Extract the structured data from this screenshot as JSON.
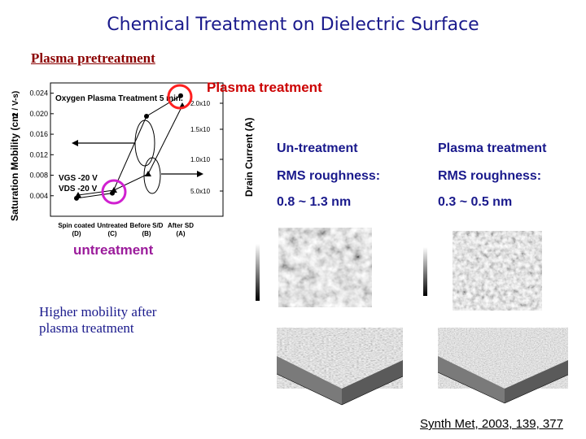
{
  "slide": {
    "title": "Chemical Treatment on Dielectric Surface",
    "subtitle": "Plasma pretreatment",
    "plasma_label": "Plasma treatment",
    "untreatment_label": "untreatment",
    "table": {
      "col1_header": "Un-treatment",
      "col2_header": "Plasma treatment",
      "rms_label_1": "RMS roughness:",
      "rms_label_2": "RMS roughness:",
      "col1_value": "0.8 ~ 1.3 nm",
      "col2_value": "0.3 ~ 0.5 nm"
    },
    "conclusion_line1": "Higher mobility after",
    "conclusion_line2": "plasma treatment",
    "citation": "Synth Met, 2003, 139, 377"
  },
  "chart_data": {
    "type": "scatter",
    "annotation": "Oxygen Plasma Treatment 5 min.",
    "ylabel_left": "Saturation Mobility (cm",
    "ylabel_left_unit": "2 / V-s)",
    "ylabel_right": "Drain Current (A)",
    "conditions": [
      "VGS -20 V",
      "VDS -20 V"
    ],
    "categories": [
      "Spin coated (D)",
      "Untreated (C)",
      "Before S/D (B)",
      "After SD (A)"
    ],
    "left_ticks": [
      "0.004",
      "0.008",
      "0.012",
      "0.016",
      "0.020",
      "0.024"
    ],
    "right_ticks": [
      "5.0x10",
      "1.0x10",
      "1.5x10",
      "2.0x10"
    ],
    "mobility": [
      0.0035,
      0.0045,
      0.0195,
      0.0235
    ],
    "current": [
      2e-07,
      3e-07,
      5e-07,
      2e-06
    ],
    "ylim_left": [
      0.0,
      0.026
    ]
  }
}
